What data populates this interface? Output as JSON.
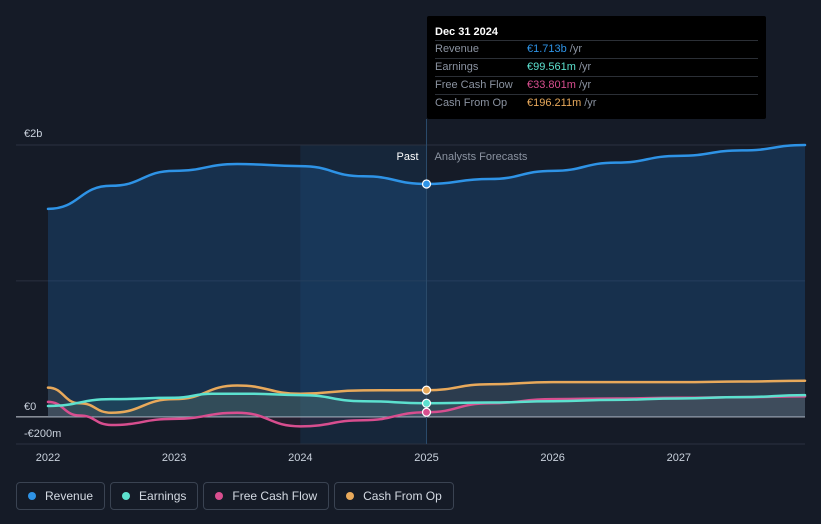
{
  "tooltip": {
    "date": "Dec 31 2024",
    "rows": [
      {
        "label": "Revenue",
        "value": "€1.713b",
        "unit": "/yr",
        "color": "#2e93e6"
      },
      {
        "label": "Earnings",
        "value": "€99.561m",
        "unit": "/yr",
        "color": "#5ce1cf"
      },
      {
        "label": "Free Cash Flow",
        "value": "€33.801m",
        "unit": "/yr",
        "color": "#d84e8f"
      },
      {
        "label": "Cash From Op",
        "value": "€196.211m",
        "unit": "/yr",
        "color": "#e8a95b"
      }
    ]
  },
  "legend": [
    {
      "label": "Revenue",
      "color": "#2e93e6"
    },
    {
      "label": "Earnings",
      "color": "#5ce1cf"
    },
    {
      "label": "Free Cash Flow",
      "color": "#d84e8f"
    },
    {
      "label": "Cash From Op",
      "color": "#e8a95b"
    }
  ],
  "chart_data": {
    "type": "line",
    "title": "",
    "xlabel": "",
    "ylabel": "",
    "currency": "€",
    "ylim": [
      -200,
      2000
    ],
    "xlim": [
      2022.0,
      2028.0
    ],
    "y_tick_labels": [
      {
        "value": 2000,
        "label": "€2b"
      },
      {
        "value": 0,
        "label": "€0"
      },
      {
        "value": -200,
        "label": "-€200m"
      }
    ],
    "x_tick_labels": [
      {
        "value": 2022,
        "label": "2022"
      },
      {
        "value": 2023,
        "label": "2023"
      },
      {
        "value": 2024,
        "label": "2024"
      },
      {
        "value": 2025,
        "label": "2025"
      },
      {
        "value": 2026,
        "label": "2026"
      },
      {
        "value": 2027,
        "label": "2027"
      }
    ],
    "divider_x": 2025.0,
    "highlight_start_x": 2024.0,
    "past_label": "Past",
    "forecast_label": "Analysts Forecasts",
    "marker_x": 2025.0,
    "series": [
      {
        "name": "Revenue",
        "color": "#2e93e6",
        "points": [
          [
            2022.0,
            1530
          ],
          [
            2022.5,
            1700
          ],
          [
            2023.0,
            1810
          ],
          [
            2023.5,
            1860
          ],
          [
            2024.0,
            1845
          ],
          [
            2024.5,
            1770
          ],
          [
            2025.0,
            1713
          ],
          [
            2025.5,
            1750
          ],
          [
            2026.0,
            1810
          ],
          [
            2026.5,
            1870
          ],
          [
            2027.0,
            1920
          ],
          [
            2027.5,
            1960
          ],
          [
            2028.0,
            2000
          ]
        ]
      },
      {
        "name": "Earnings",
        "color": "#5ce1cf",
        "points": [
          [
            2022.0,
            80
          ],
          [
            2022.5,
            130
          ],
          [
            2023.0,
            140
          ],
          [
            2023.3,
            170
          ],
          [
            2023.6,
            170
          ],
          [
            2024.0,
            160
          ],
          [
            2024.5,
            115
          ],
          [
            2025.0,
            99.561
          ],
          [
            2025.5,
            105
          ],
          [
            2026.0,
            115
          ],
          [
            2026.5,
            125
          ],
          [
            2027.0,
            135
          ],
          [
            2027.5,
            145
          ],
          [
            2028.0,
            160
          ]
        ]
      },
      {
        "name": "Free Cash Flow",
        "color": "#d84e8f",
        "points": [
          [
            2022.0,
            110
          ],
          [
            2022.25,
            10
          ],
          [
            2022.5,
            -60
          ],
          [
            2023.0,
            -15
          ],
          [
            2023.5,
            30
          ],
          [
            2024.0,
            -70
          ],
          [
            2024.5,
            -25
          ],
          [
            2025.0,
            33.801
          ],
          [
            2025.5,
            100
          ],
          [
            2026.0,
            130
          ],
          [
            2026.5,
            135
          ],
          [
            2027.0,
            140
          ],
          [
            2027.5,
            145
          ],
          [
            2028.0,
            150
          ]
        ]
      },
      {
        "name": "Cash From Op",
        "color": "#e8a95b",
        "points": [
          [
            2022.0,
            215
          ],
          [
            2022.25,
            100
          ],
          [
            2022.5,
            30
          ],
          [
            2023.0,
            130
          ],
          [
            2023.5,
            230
          ],
          [
            2024.0,
            170
          ],
          [
            2024.5,
            195
          ],
          [
            2025.0,
            196.211
          ],
          [
            2025.5,
            240
          ],
          [
            2026.0,
            255
          ],
          [
            2026.5,
            255
          ],
          [
            2027.0,
            255
          ],
          [
            2027.5,
            260
          ],
          [
            2028.0,
            265
          ]
        ]
      }
    ]
  }
}
